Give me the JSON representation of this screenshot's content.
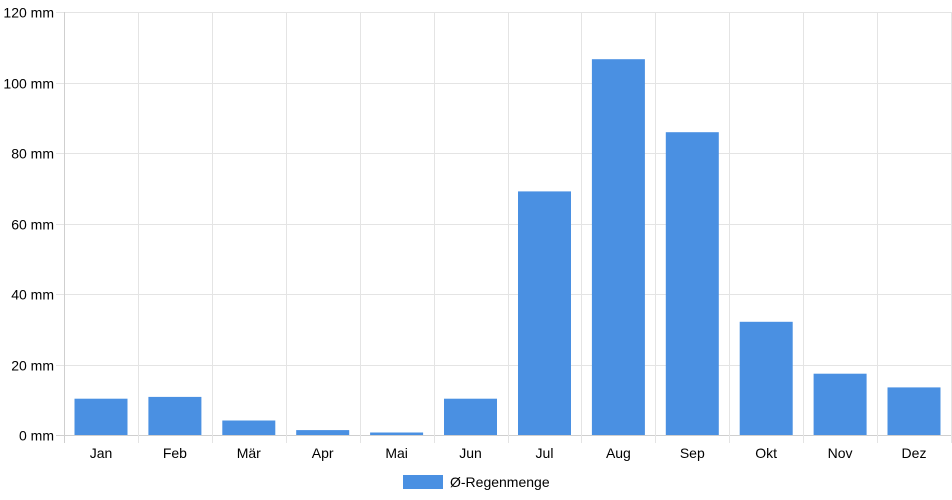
{
  "chart_data": {
    "type": "bar",
    "categories": [
      "Jan",
      "Feb",
      "Mär",
      "Apr",
      "Mai",
      "Jun",
      "Jul",
      "Aug",
      "Sep",
      "Okt",
      "Nov",
      "Dez"
    ],
    "series": [
      {
        "name": "Ø-Regenmenge",
        "color": "#4a90e2",
        "values": [
          10.3,
          10.8,
          4.1,
          1.4,
          0.7,
          10.3,
          69.1,
          106.6,
          85.9,
          32.1,
          17.4,
          13.5
        ]
      }
    ],
    "ylim": [
      0,
      120
    ],
    "yticks": [
      0,
      20,
      40,
      60,
      80,
      100,
      120
    ],
    "ytick_labels": [
      "0 mm",
      "20 mm",
      "40 mm",
      "60 mm",
      "80 mm",
      "100 mm",
      "120 mm"
    ],
    "grid": true,
    "legend_position": "bottom"
  }
}
